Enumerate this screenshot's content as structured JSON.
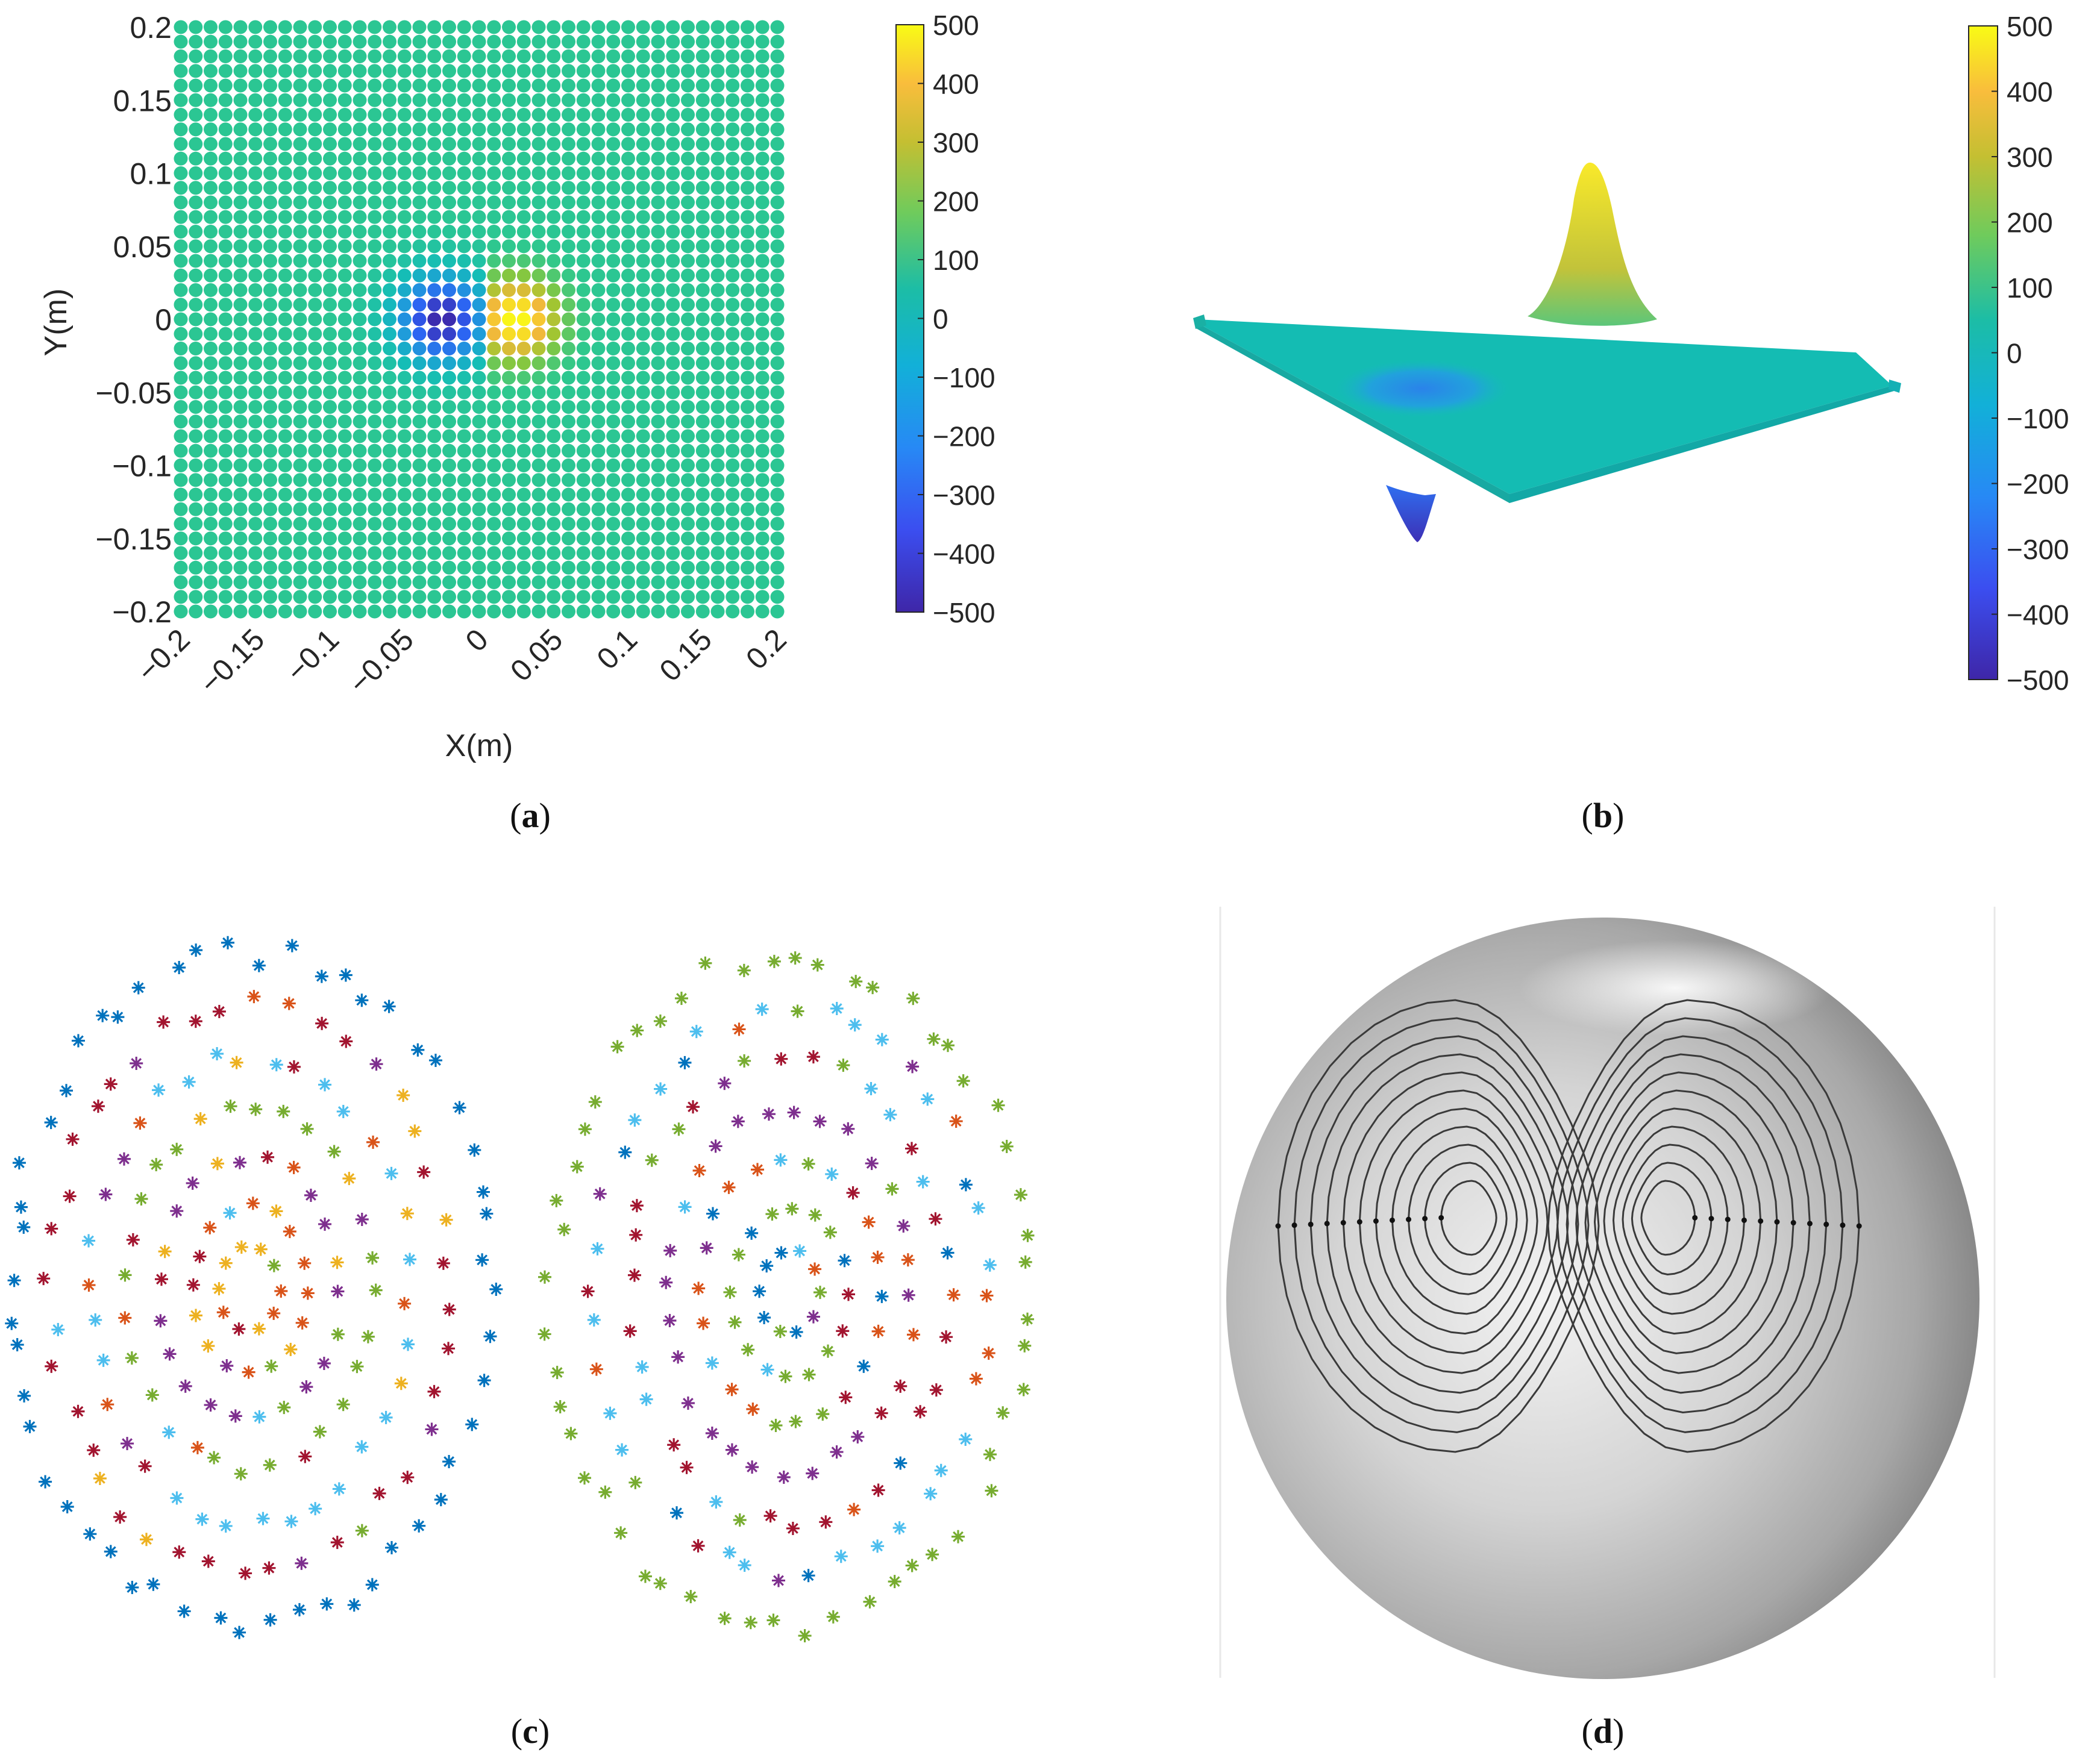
{
  "captions": {
    "a": {
      "open": "(",
      "letter": "a",
      "close": ")"
    },
    "b": {
      "open": "(",
      "letter": "b",
      "close": ")"
    },
    "c": {
      "open": "(",
      "letter": "c",
      "close": ")"
    },
    "d": {
      "open": "(",
      "letter": "d",
      "close": ")"
    }
  },
  "colormap": [
    "#3e26a8",
    "#2d5ff4",
    "#1f9bdb",
    "#14bcb8",
    "#2fc88d",
    "#95c731",
    "#f5b83a",
    "#f9fb15"
  ],
  "chart_data": [
    {
      "panel": "a",
      "type": "scatter",
      "title": "",
      "xlabel": "X(m)",
      "ylabel": "Y(m)",
      "xlim": [
        -0.2,
        0.2
      ],
      "ylim": [
        -0.2,
        0.2
      ],
      "xticks": [
        "−0.2",
        "−0.15",
        "−0.1",
        "−0.05",
        "0",
        "0.05",
        "0.1",
        "0.15",
        "0.2"
      ],
      "yticks": [
        "0.2",
        "0.15",
        "0.1",
        "0.05",
        "0",
        "−0.05",
        "−0.1",
        "−0.15",
        "−0.2"
      ],
      "grid_points_per_axis": 41,
      "value_model": {
        "min_at": [
          -0.025,
          0
        ],
        "min_value": -500,
        "max_at": [
          0.025,
          0
        ],
        "max_value": 500,
        "background": 50
      },
      "colorbar": {
        "ticks": [
          "500",
          "400",
          "300",
          "200",
          "100",
          "0",
          "−100",
          "−200",
          "−300",
          "−400",
          "−500"
        ],
        "range": [
          -500,
          500
        ]
      }
    },
    {
      "panel": "b",
      "type": "surface",
      "title": "",
      "value_model": {
        "peak_value": 500,
        "trough_value": -500
      },
      "colorbar": {
        "ticks": [
          "500",
          "400",
          "300",
          "200",
          "100",
          "0",
          "−100",
          "−200",
          "−300",
          "−400",
          "−500"
        ],
        "range": [
          -500,
          500
        ]
      }
    },
    {
      "panel": "c",
      "type": "scatter",
      "title": "",
      "marker": "asterisk",
      "series_colors": [
        "#0072bd",
        "#d95319",
        "#edb120",
        "#7e2f8e",
        "#77ac30",
        "#4dbeee",
        "#a2142f"
      ],
      "lobes": 2
    },
    {
      "panel": "d",
      "type": "contour",
      "title": "",
      "contour_levels": 11,
      "lobes": 2
    }
  ]
}
